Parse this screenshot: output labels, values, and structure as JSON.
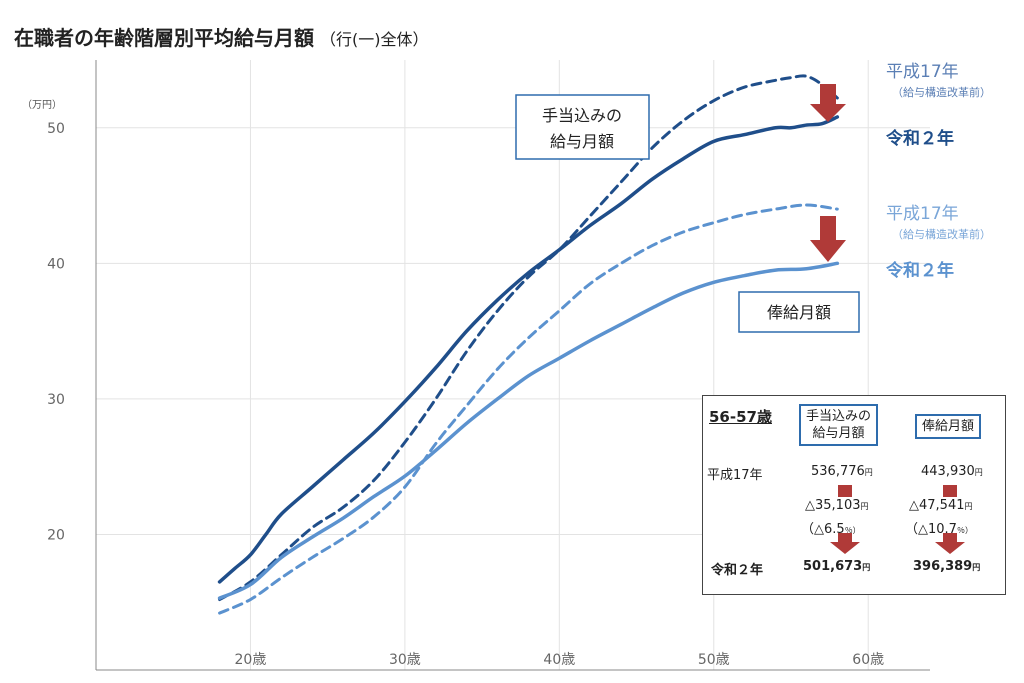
{
  "title": "在職者の年齢階層別平均給与月額",
  "subtitle": "（行(一)全体）",
  "y_unit": "（万円）",
  "colors": {
    "dark": "#1f4e8a",
    "light": "#5b92cf",
    "arrow": "#b03a38",
    "boxborder": "#2e6cad"
  },
  "labels": {
    "teate_h17": "平成17年",
    "teate_h17_sub": "（給与構造改革前）",
    "teate_r2": "令和２年",
    "hokyu_h17": "平成17年",
    "hokyu_h17_sub": "（給与構造改革前）",
    "hokyu_r2": "令和２年",
    "box_teate_1": "手当込みの",
    "box_teate_2": "給与月額",
    "box_hokyu": "俸給月額"
  },
  "summary": {
    "title": "56-57歳",
    "col1_1": "手当込みの",
    "col1_2": "給与月額",
    "col2": "俸給月額",
    "row1_label": "平成17年",
    "row1_v1": "536,776",
    "row1_v2": "443,930",
    "diff1": "△35,103",
    "diff1_pct": "（△6.5",
    "diff2": "△47,541",
    "diff2_pct": "（△10.7",
    "pct_unit": "％）",
    "row2_label": "令和２年",
    "row2_v1": "501,673",
    "row2_v2": "396,389",
    "yen": "円"
  },
  "chart_data": {
    "type": "line",
    "title": "在職者の年齢階層別平均給与月額",
    "xlabel": "",
    "ylabel": "（万円）",
    "xlim": [
      10,
      64
    ],
    "ylim": [
      10,
      55
    ],
    "xticks": [
      20,
      30,
      40,
      50,
      60
    ],
    "xtick_labels": [
      "20歳",
      "30歳",
      "40歳",
      "50歳",
      "60歳"
    ],
    "yticks": [
      20,
      30,
      40,
      50
    ],
    "series": [
      {
        "name": "手当込みの給与月額 令和２年",
        "style": "solid",
        "color": "#1f4e8a",
        "x": [
          18,
          19,
          20,
          21,
          22,
          24,
          26,
          28,
          30,
          32,
          34,
          36,
          38,
          40,
          42,
          44,
          46,
          48,
          50,
          52,
          54,
          55,
          56,
          57,
          58
        ],
        "y": [
          16.5,
          17.5,
          18.5,
          20,
          21.5,
          23.5,
          25.5,
          27.5,
          29.8,
          32.3,
          35.0,
          37.3,
          39.3,
          41.0,
          42.8,
          44.4,
          46.2,
          47.7,
          49.0,
          49.5,
          50.0,
          50.0,
          50.2,
          50.3,
          50.8
        ]
      },
      {
        "name": "手当込みの給与月額 平成17年",
        "style": "dashed",
        "color": "#1f4e8a",
        "x": [
          18,
          20,
          22,
          24,
          26,
          28,
          30,
          32,
          34,
          36,
          38,
          40,
          42,
          44,
          46,
          48,
          50,
          52,
          54,
          55,
          56,
          57,
          58
        ],
        "y": [
          15.2,
          16.5,
          18.5,
          20.5,
          22.0,
          24.0,
          26.8,
          30.0,
          33.5,
          36.5,
          39.0,
          41.0,
          43.5,
          46.0,
          48.5,
          50.5,
          52.0,
          53.0,
          53.5,
          53.7,
          53.8,
          53.2,
          52.2
        ]
      },
      {
        "name": "俸給月額 令和２年",
        "style": "solid",
        "color": "#5b92cf",
        "x": [
          18,
          20,
          22,
          24,
          26,
          28,
          30,
          32,
          34,
          36,
          38,
          40,
          42,
          44,
          46,
          48,
          50,
          52,
          54,
          56,
          58
        ],
        "y": [
          15.3,
          16.3,
          18.3,
          19.8,
          21.2,
          22.8,
          24.3,
          26.2,
          28.2,
          30.0,
          31.7,
          33.0,
          34.3,
          35.5,
          36.7,
          37.8,
          38.6,
          39.1,
          39.5,
          39.6,
          40.0
        ]
      },
      {
        "name": "俸給月額 平成17年",
        "style": "dashed",
        "color": "#5b92cf",
        "x": [
          18,
          20,
          22,
          24,
          26,
          28,
          30,
          32,
          34,
          36,
          38,
          40,
          42,
          44,
          46,
          48,
          50,
          52,
          54,
          56,
          58
        ],
        "y": [
          14.2,
          15.2,
          16.8,
          18.3,
          19.7,
          21.3,
          23.5,
          26.7,
          29.5,
          32.2,
          34.5,
          36.5,
          38.5,
          40.0,
          41.3,
          42.3,
          43.0,
          43.6,
          44.0,
          44.3,
          44.0
        ]
      }
    ]
  }
}
